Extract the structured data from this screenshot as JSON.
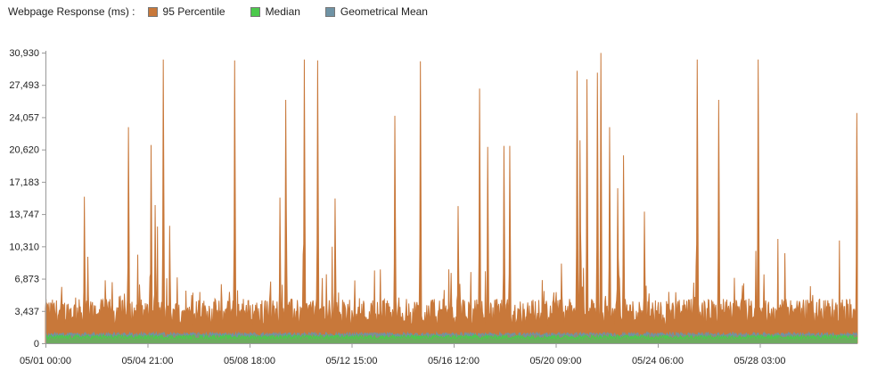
{
  "chart_data": {
    "type": "line",
    "title": "Webpage Response (ms) :",
    "xlabel": "",
    "ylabel": "",
    "ylim": [
      0,
      30930
    ],
    "yticks": [
      "30,930",
      "27,493",
      "24,057",
      "20,620",
      "17,183",
      "13,747",
      "10,310",
      "6,873",
      "3,437",
      "0"
    ],
    "ytick_values": [
      30930,
      27493,
      24057,
      20620,
      17183,
      13747,
      10310,
      6873,
      3437,
      0
    ],
    "xticks": [
      "05/01 00:00",
      "05/04 21:00",
      "05/08 18:00",
      "05/12 15:00",
      "05/16 12:00",
      "05/20 09:00",
      "05/24 06:00",
      "05/28 03:00"
    ],
    "grid": false,
    "legend": "top-left",
    "series": [
      {
        "name": "95 Percentile",
        "color": "#c8783a",
        "baseline": 3200,
        "noise": 1900,
        "peaks": [
          {
            "x": 0.02,
            "y": 6000
          },
          {
            "x": 0.048,
            "y": 15600
          },
          {
            "x": 0.052,
            "y": 9200
          },
          {
            "x": 0.082,
            "y": 6500
          },
          {
            "x": 0.102,
            "y": 23000
          },
          {
            "x": 0.13,
            "y": 21100
          },
          {
            "x": 0.135,
            "y": 14700
          },
          {
            "x": 0.145,
            "y": 30200
          },
          {
            "x": 0.153,
            "y": 12500
          },
          {
            "x": 0.233,
            "y": 30100
          },
          {
            "x": 0.289,
            "y": 15500
          },
          {
            "x": 0.296,
            "y": 25900
          },
          {
            "x": 0.319,
            "y": 30200
          },
          {
            "x": 0.335,
            "y": 30100
          },
          {
            "x": 0.357,
            "y": 15400
          },
          {
            "x": 0.43,
            "y": 24200
          },
          {
            "x": 0.462,
            "y": 30000
          },
          {
            "x": 0.508,
            "y": 14600
          },
          {
            "x": 0.535,
            "y": 27100
          },
          {
            "x": 0.545,
            "y": 20900
          },
          {
            "x": 0.565,
            "y": 21000
          },
          {
            "x": 0.572,
            "y": 21000
          },
          {
            "x": 0.655,
            "y": 29000
          },
          {
            "x": 0.658,
            "y": 21600
          },
          {
            "x": 0.667,
            "y": 28100
          },
          {
            "x": 0.68,
            "y": 28800
          },
          {
            "x": 0.684,
            "y": 30900
          },
          {
            "x": 0.695,
            "y": 23000
          },
          {
            "x": 0.705,
            "y": 16500
          },
          {
            "x": 0.712,
            "y": 20000
          },
          {
            "x": 0.738,
            "y": 14000
          },
          {
            "x": 0.803,
            "y": 30200
          },
          {
            "x": 0.829,
            "y": 25900
          },
          {
            "x": 0.878,
            "y": 30200
          },
          {
            "x": 0.999,
            "y": 24500
          }
        ]
      },
      {
        "name": "Median",
        "color": "#4cc94c",
        "baseline": 650,
        "noise": 450
      },
      {
        "name": "Geometrical Mean",
        "color": "#6f93a5",
        "baseline": 900,
        "noise": 500
      }
    ]
  }
}
